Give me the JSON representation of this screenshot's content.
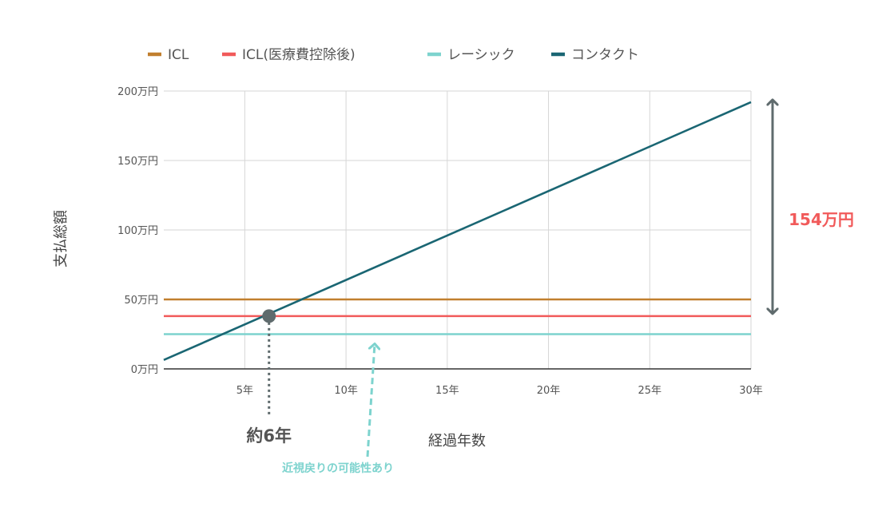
{
  "chart_data": {
    "type": "line",
    "title": "",
    "xlabel": "経過年数",
    "ylabel": "支払総額",
    "xlim": [
      1,
      30
    ],
    "ylim": [
      0,
      200
    ],
    "x_ticks": [
      5,
      10,
      15,
      20,
      25,
      30
    ],
    "x_tick_labels": [
      "5年",
      "10年",
      "15年",
      "20年",
      "25年",
      "30年"
    ],
    "y_ticks": [
      0,
      50,
      100,
      150,
      200
    ],
    "y_tick_labels": [
      "0万円",
      "50万円",
      "100万円",
      "150万円",
      "200万円"
    ],
    "grid": true,
    "legend_position": "top",
    "series": [
      {
        "name": "ICL",
        "color": "#c17f2e",
        "points": [
          [
            1,
            50
          ],
          [
            30,
            50
          ]
        ]
      },
      {
        "name": "ICL(医療費控除後)",
        "color": "#f15a5a",
        "points": [
          [
            1,
            38
          ],
          [
            30,
            38
          ]
        ]
      },
      {
        "name": "レーシック",
        "color": "#7dd3ce",
        "points": [
          [
            1,
            25
          ],
          [
            30,
            25
          ]
        ]
      },
      {
        "name": "コンタクト",
        "color": "#1a6673",
        "points": [
          [
            1,
            6.4
          ],
          [
            30,
            192
          ]
        ]
      }
    ],
    "annotations": {
      "difference": {
        "text": "154万円",
        "color": "#f15a5a",
        "arrow_color": "#5f6b6d",
        "x": 30,
        "y_from": 38,
        "y_to": 192
      },
      "crossover": {
        "text": "約6年",
        "color": "#555555",
        "marker_color": "#5f6b6d",
        "x": 6,
        "y": 38
      },
      "regression": {
        "text": "近視戻りの可能性あり",
        "color": "#7dd3ce",
        "x": 11.4,
        "y": 25
      }
    }
  }
}
